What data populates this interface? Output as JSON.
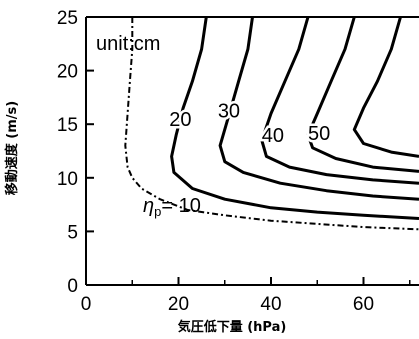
{
  "chart_data": {
    "type": "line",
    "xlabel": "気圧低下量 (hPa)",
    "ylabel": "移動速度 (m/s)",
    "xlim": [
      0,
      72
    ],
    "ylim": [
      0,
      25
    ],
    "xticks": [
      0,
      20,
      40,
      60
    ],
    "yticks": [
      0,
      5,
      10,
      15,
      20,
      25
    ],
    "xtick_labels": [
      "0",
      "20",
      "40",
      "60"
    ],
    "ytick_labels": [
      "0",
      "5",
      "10",
      "15",
      "20",
      "25"
    ],
    "unit_label": "unit:cm",
    "eta_symbol": "η",
    "eta_subscript": "p",
    "grid": false,
    "series": [
      {
        "label": "= 10",
        "dashed": true,
        "points": [
          [
            10,
            25
          ],
          [
            10,
            22
          ],
          [
            9.5,
            19
          ],
          [
            9,
            16
          ],
          [
            8.5,
            13
          ],
          [
            9,
            11
          ],
          [
            10,
            10
          ],
          [
            12,
            9
          ],
          [
            16,
            8
          ],
          [
            22,
            7
          ],
          [
            30,
            6.5
          ],
          [
            40,
            6
          ],
          [
            50,
            5.7
          ],
          [
            60,
            5.4
          ],
          [
            72,
            5.2
          ]
        ]
      },
      {
        "label": "20",
        "dashed": false,
        "points": [
          [
            26,
            25
          ],
          [
            25,
            22
          ],
          [
            23,
            19
          ],
          [
            21,
            16.5
          ],
          [
            19.5,
            14
          ],
          [
            18.5,
            12
          ],
          [
            19,
            10.5
          ],
          [
            23,
            9
          ],
          [
            30,
            8
          ],
          [
            40,
            7.2
          ],
          [
            50,
            6.8
          ],
          [
            60,
            6.5
          ],
          [
            72,
            6.2
          ]
        ]
      },
      {
        "label": "30",
        "dashed": false,
        "points": [
          [
            36,
            25
          ],
          [
            35,
            22
          ],
          [
            33,
            19
          ],
          [
            31,
            16
          ],
          [
            29,
            13
          ],
          [
            30,
            11.5
          ],
          [
            34,
            10.5
          ],
          [
            42,
            9.5
          ],
          [
            52,
            8.8
          ],
          [
            62,
            8.3
          ],
          [
            72,
            8
          ]
        ]
      },
      {
        "label": "40",
        "dashed": false,
        "points": [
          [
            48,
            25
          ],
          [
            46,
            22
          ],
          [
            43,
            19
          ],
          [
            40,
            16
          ],
          [
            38,
            13.5
          ],
          [
            39,
            12
          ],
          [
            44,
            11
          ],
          [
            52,
            10.3
          ],
          [
            62,
            9.8
          ],
          [
            72,
            9.5
          ]
        ]
      },
      {
        "label": "50",
        "dashed": false,
        "points": [
          [
            58,
            25
          ],
          [
            56,
            22
          ],
          [
            53,
            19
          ],
          [
            50,
            16
          ],
          [
            48,
            14
          ],
          [
            49,
            12.8
          ],
          [
            54,
            11.8
          ],
          [
            62,
            11
          ],
          [
            72,
            10.6
          ]
        ]
      },
      {
        "label": "",
        "dashed": false,
        "points": [
          [
            68,
            25
          ],
          [
            66,
            22
          ],
          [
            63,
            19
          ],
          [
            60,
            16.5
          ],
          [
            58,
            14.5
          ],
          [
            60,
            13.2
          ],
          [
            66,
            12.4
          ],
          [
            72,
            12
          ]
        ]
      }
    ],
    "contour_label_positions": [
      {
        "text": "20",
        "x": 18,
        "y": 15.5
      },
      {
        "text": "30",
        "x": 28.5,
        "y": 16.3
      },
      {
        "text": "40",
        "x": 38,
        "y": 14
      },
      {
        "text": "50",
        "x": 48,
        "y": 14.2
      }
    ]
  }
}
